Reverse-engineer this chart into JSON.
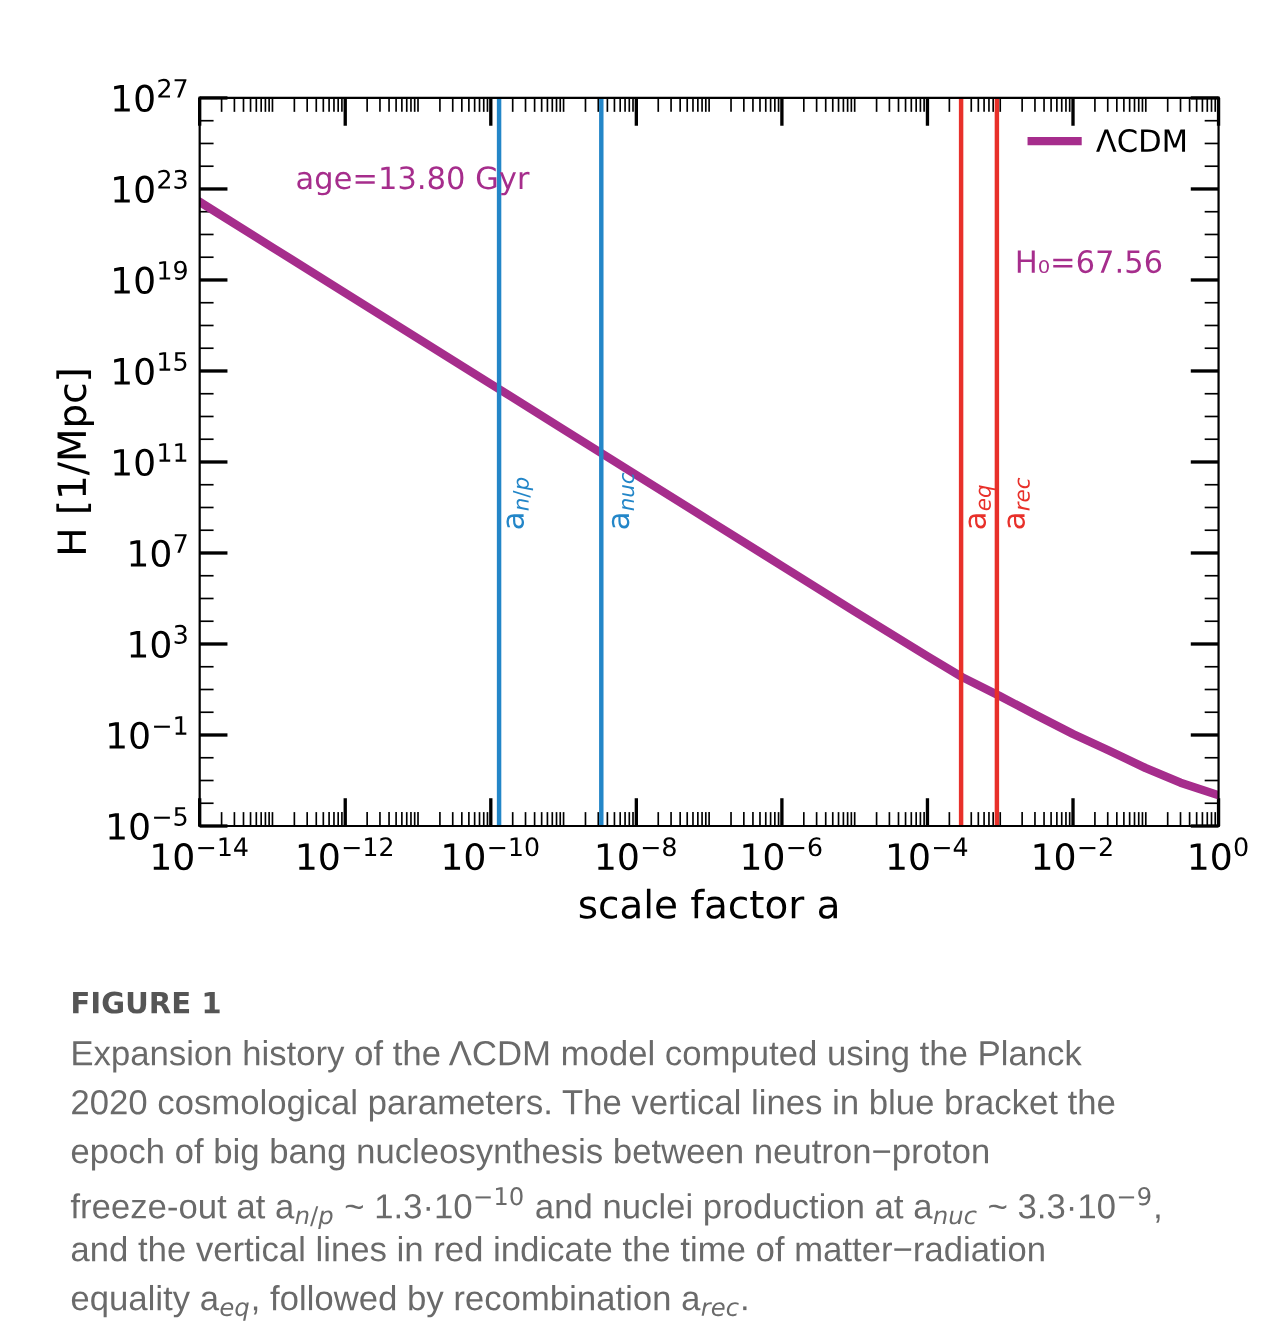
{
  "chart_data": {
    "type": "line",
    "xlabel": "scale factor a",
    "ylabel": "H [1/Mpc]",
    "log": "xy",
    "grid": false,
    "legend": "top right",
    "x": [
      1e-14,
      1e-13,
      1e-12,
      1e-11,
      1e-10,
      1e-09,
      1e-08,
      1e-07,
      1e-06,
      1e-05,
      0.0001,
      0.0003,
      0.001,
      0.003,
      0.01,
      0.03,
      0.1,
      0.3,
      1
    ],
    "series": [
      {
        "name": "ΛCDM",
        "color": "#a62d8c",
        "values": [
          2.7e+22,
          2.7e+20,
          2.7e+18,
          2.7e+16,
          270000000000000.0,
          2700000000000.0,
          27000000000.0,
          270000000.0,
          2700000.0,
          27000.0,
          290.0,
          35.0,
          5.0,
          0.8,
          0.11,
          0.022,
          0.0035,
          0.0008,
          0.000225
        ]
      }
    ],
    "xlim": [
      1e-14,
      1
    ],
    "xticks": [
      {
        "value": 1e-14,
        "label": "10$^{−14}$"
      },
      {
        "value": 1e-12,
        "label": "10$^{−12}$"
      },
      {
        "value": 1e-10,
        "label": "10$^{−10}$"
      },
      {
        "value": 1e-08,
        "label": "10$^{−8}$"
      },
      {
        "value": 1e-06,
        "label": "10$^{−6}$"
      },
      {
        "value": 0.0001,
        "label": "10$^{−4}$"
      },
      {
        "value": 0.01,
        "label": "10$^{−2}$"
      },
      {
        "value": 1,
        "label": "10$^{0}$"
      }
    ],
    "ylim": [
      1e-05,
      1e+27
    ],
    "yticks": [
      {
        "value": 1e-05,
        "label": "10$^{−5}$"
      },
      {
        "value": 0.1,
        "label": "10$^{−1}$"
      },
      {
        "value": 1000.0,
        "label": "10$^{3}$"
      },
      {
        "value": 10000000.0,
        "label": "10$^{7}$"
      },
      {
        "value": 100000000000.0,
        "label": "10$^{11}$"
      },
      {
        "value": 1000000000000000.0,
        "label": "10$^{15}$"
      },
      {
        "value": 1e+19,
        "label": "10$^{19}$"
      },
      {
        "value": 1e+23,
        "label": "10$^{23}$"
      },
      {
        "value": 1e+27,
        "label": "10$^{27}$"
      }
    ],
    "ref_lines": [
      {
        "axis": "x",
        "value": 1.3e-10,
        "label": "a$_{n/p}$",
        "color": "#2386c8"
      },
      {
        "axis": "x",
        "value": 3.3e-09,
        "label": "a$_{nuc}$",
        "color": "#2386c8"
      },
      {
        "axis": "x",
        "value": 0.00029,
        "label": "a$_{eq}$",
        "color": "#e8302a"
      },
      {
        "axis": "x",
        "value": 0.0009,
        "label": "a$_{rec}$",
        "color": "#e8302a"
      }
    ],
    "annotations": [
      "age=13.80 Gyr",
      "H₀=67.56",
      "FIGURE 1",
      "Expansion history of the ΛCDM model computed using the Planck",
      "2020 cosmological parameters. The vertical lines in blue bracket the",
      "epoch of big bang nucleosynthesis between neutron−proton",
      "freeze-out at a$_{n/p}$ ~ 1.3·10$^{−10}$ and nuclei production at a$_{nuc}$ ~ 3.3·10$^{−9}$,",
      "and the vertical lines in red indicate the time of matter−radiation",
      "equality a$_{eq}$, followed by recombination a$_{rec}$."
    ]
  }
}
